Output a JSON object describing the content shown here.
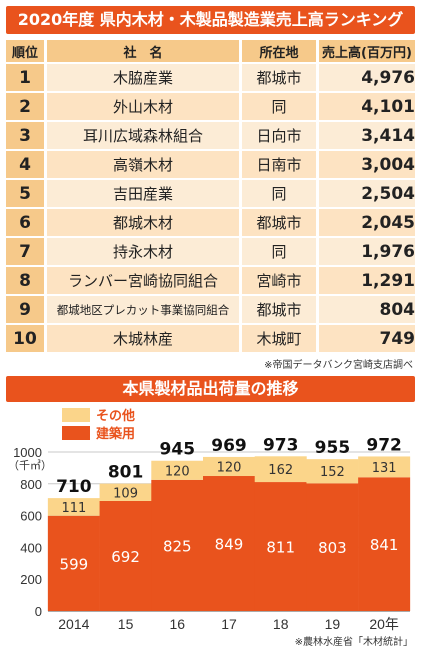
{
  "ranking": {
    "title": "2020年度 県内木材・木製品製造業売上高ランキング",
    "headers": [
      "順位",
      "社　名",
      "所在地",
      "売上高(百万円)"
    ],
    "rows": [
      {
        "rank": "1",
        "name": "木脇産業",
        "place": "都城市",
        "value": "4,976"
      },
      {
        "rank": "2",
        "name": "外山木材",
        "place": "同",
        "value": "4,101"
      },
      {
        "rank": "3",
        "name": "耳川広域森林組合",
        "place": "日向市",
        "value": "3,414"
      },
      {
        "rank": "4",
        "name": "高嶺木材",
        "place": "日南市",
        "value": "3,004"
      },
      {
        "rank": "5",
        "name": "吉田産業",
        "place": "同",
        "value": "2,504"
      },
      {
        "rank": "6",
        "name": "都城木材",
        "place": "都城市",
        "value": "2,045"
      },
      {
        "rank": "7",
        "name": "持永木材",
        "place": "同",
        "value": "1,976"
      },
      {
        "rank": "8",
        "name": "ランバー宮崎協同組合",
        "place": "宮崎市",
        "value": "1,291"
      },
      {
        "rank": "9",
        "name": "都城地区プレカット事業協同組合",
        "place": "都城市",
        "value": "804"
      },
      {
        "rank": "10",
        "name": "木城林産",
        "place": "木城町",
        "value": "749"
      }
    ],
    "source": "※帝国データバンク宮崎支店調べ"
  },
  "chart_data": {
    "type": "bar",
    "title": "本県製材品出荷量の推移",
    "unit": "（千㎥）",
    "categories": [
      "2014",
      "15",
      "16",
      "17",
      "18",
      "19",
      "20年"
    ],
    "series": [
      {
        "name": "建築用",
        "values": [
          599,
          692,
          825,
          849,
          811,
          803,
          841
        ],
        "color": "#e9531d"
      },
      {
        "name": "その他",
        "values": [
          111,
          109,
          120,
          120,
          162,
          152,
          131
        ],
        "color": "#fbd58a"
      }
    ],
    "totals": [
      "710",
      "801",
      "945",
      "969",
      "973",
      "955",
      "972"
    ],
    "yticks": [
      "0",
      "200",
      "400",
      "600",
      "800",
      "1000"
    ],
    "ylim": [
      0,
      1000
    ],
    "stacked": true,
    "source": "※農林水産省「木材統計」"
  }
}
